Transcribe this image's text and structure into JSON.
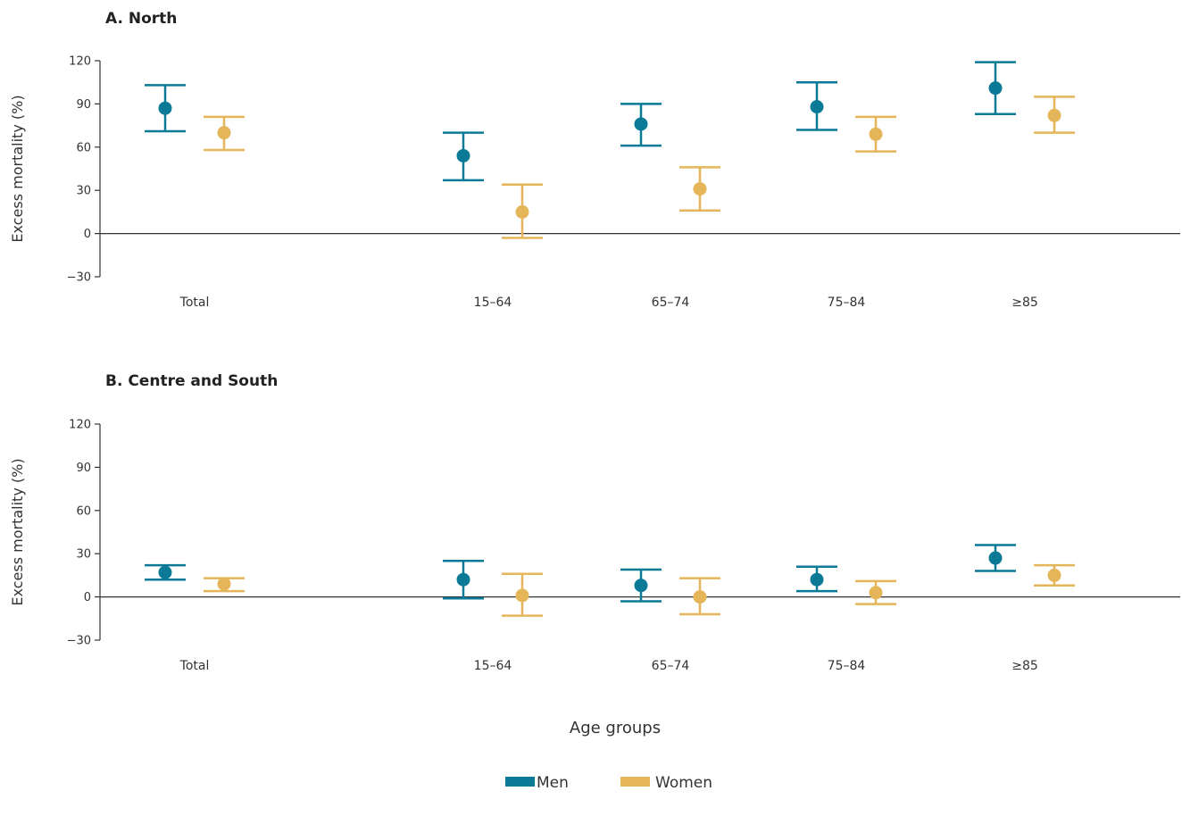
{
  "chart_data": [
    {
      "type": "scatter",
      "title": "A. North",
      "ylabel": "Excess mortality (%)",
      "xlabel": "",
      "ylim": [
        -30,
        120
      ],
      "yticks": [
        -30,
        0,
        30,
        60,
        90,
        120
      ],
      "categories": [
        "Total",
        "15–64",
        "65–74",
        "75–84",
        "≥85"
      ],
      "series": [
        {
          "name": "Men",
          "color": "#0a7a97",
          "values": [
            87,
            54,
            76,
            88,
            101
          ],
          "lower": [
            71,
            37,
            61,
            72,
            83
          ],
          "upper": [
            103,
            70,
            90,
            105,
            119
          ]
        },
        {
          "name": "Women",
          "color": "#e5b55a",
          "values": [
            70,
            15,
            31,
            69,
            82
          ],
          "lower": [
            58,
            -3,
            16,
            57,
            70
          ],
          "upper": [
            81,
            34,
            46,
            81,
            95
          ]
        }
      ]
    },
    {
      "type": "scatter",
      "title": "B. Centre and South",
      "ylabel": "Excess mortality (%)",
      "xlabel": "Age groups",
      "ylim": [
        -30,
        120
      ],
      "yticks": [
        -30,
        0,
        30,
        60,
        90,
        120
      ],
      "categories": [
        "Total",
        "15–64",
        "65–74",
        "75–84",
        "≥85"
      ],
      "series": [
        {
          "name": "Men",
          "color": "#0a7a97",
          "values": [
            17,
            12,
            8,
            12,
            27
          ],
          "lower": [
            12,
            -1,
            -3,
            4,
            18
          ],
          "upper": [
            22,
            25,
            19,
            21,
            36
          ]
        },
        {
          "name": "Women",
          "color": "#e5b55a",
          "values": [
            9,
            1,
            0,
            3,
            15
          ],
          "lower": [
            4,
            -13,
            -12,
            -5,
            8
          ],
          "upper": [
            13,
            16,
            13,
            11,
            22
          ]
        }
      ]
    }
  ],
  "legend": {
    "items": [
      {
        "label": "Men",
        "color": "#0a7a97"
      },
      {
        "label": "Women",
        "color": "#e5b55a"
      }
    ]
  }
}
